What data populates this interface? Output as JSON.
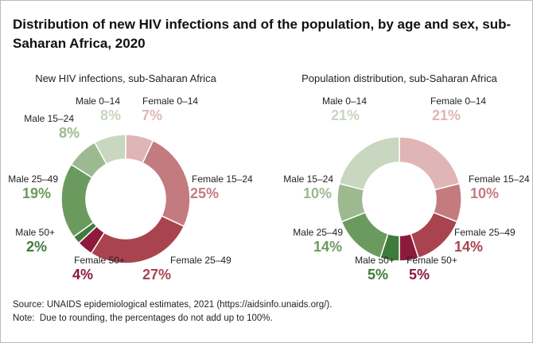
{
  "title": "Distribution of new HIV infections and of the population, by age and sex, sub-Saharan Africa, 2020",
  "chart_data": [
    {
      "type": "pie",
      "title": "New HIV infections, sub-Saharan Africa",
      "categories": [
        "Female 0–14",
        "Female 15–24",
        "Female 25–49",
        "Female 50+",
        "Male 50+",
        "Male 25–49",
        "Male 15–24",
        "Male 0–14"
      ],
      "values": [
        7,
        25,
        27,
        4,
        2,
        19,
        8,
        8
      ],
      "value_labels": [
        "7%",
        "25%",
        "27%",
        "4%",
        "2%",
        "19%",
        "8%",
        "8%"
      ],
      "colors": [
        "#e0b5b5",
        "#c47b7f",
        "#a9444e",
        "#8c1a3b",
        "#3f7b3c",
        "#6b9a5f",
        "#9db98f",
        "#c9d6c0"
      ]
    },
    {
      "type": "pie",
      "title": "Population distribution, sub-Saharan Africa",
      "categories": [
        "Female 0–14",
        "Female 15–24",
        "Female 25–49",
        "Female 50+",
        "Male 50+",
        "Male 25–49",
        "Male 15–24",
        "Male 0–14"
      ],
      "values": [
        21,
        10,
        14,
        5,
        5,
        14,
        10,
        21
      ],
      "value_labels": [
        "21%",
        "10%",
        "14%",
        "5%",
        "5%",
        "14%",
        "10%",
        "21%"
      ],
      "colors": [
        "#e0b5b5",
        "#c47b7f",
        "#a9444e",
        "#8c1a3b",
        "#3f7b3c",
        "#6b9a5f",
        "#9db98f",
        "#c9d6c0"
      ]
    }
  ],
  "source": "Source: UNAIDS epidemiological estimates, 2021 (https://aidsinfo.unaids.org/).",
  "note": "Note:  Due to rounding, the percentages do not add up to 100%."
}
